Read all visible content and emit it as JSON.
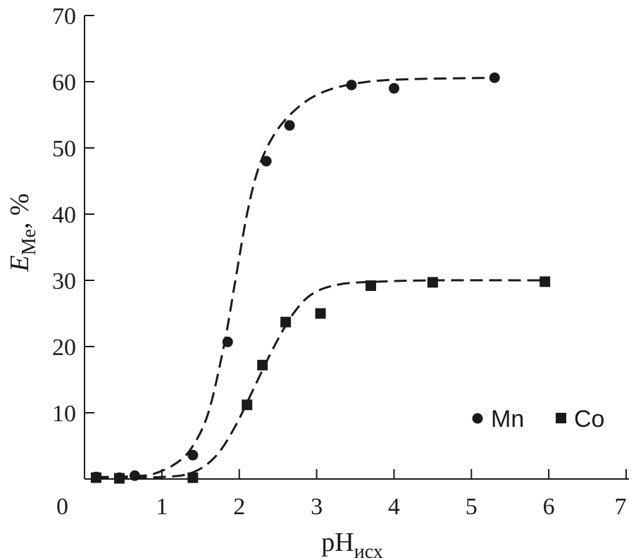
{
  "chart_data": {
    "type": "scatter",
    "title": "",
    "xlabel": {
      "main": "pH",
      "sub": "исх"
    },
    "ylabel": {
      "main": "E",
      "sub": "Me",
      "suffix": ", %"
    },
    "xlim": [
      0,
      7
    ],
    "ylim": [
      0,
      70
    ],
    "x_ticks": [
      "0",
      "1",
      "2",
      "3",
      "4",
      "5",
      "6",
      "7"
    ],
    "y_ticks": [
      "10",
      "20",
      "30",
      "40",
      "50",
      "60",
      "70"
    ],
    "grid": false,
    "legend_position": "bottom-right",
    "series": [
      {
        "name": "Mn",
        "marker": "circle",
        "color": "#1a1a1a",
        "points": [
          [
            0.15,
            0.3
          ],
          [
            0.45,
            0.2
          ],
          [
            0.65,
            0.5
          ],
          [
            1.4,
            3.6
          ],
          [
            1.85,
            20.7
          ],
          [
            2.35,
            48.0
          ],
          [
            2.65,
            53.4
          ],
          [
            3.45,
            59.5
          ],
          [
            4.0,
            59.0
          ],
          [
            5.3,
            60.6
          ]
        ],
        "fit_curve": [
          [
            0.15,
            0.3
          ],
          [
            0.6,
            0.4
          ],
          [
            0.9,
            0.8
          ],
          [
            1.2,
            2.5
          ],
          [
            1.4,
            5.0
          ],
          [
            1.6,
            10.0
          ],
          [
            1.8,
            20.0
          ],
          [
            1.95,
            30.0
          ],
          [
            2.1,
            40.0
          ],
          [
            2.25,
            47.0
          ],
          [
            2.45,
            52.0
          ],
          [
            2.7,
            55.5
          ],
          [
            3.0,
            58.0
          ],
          [
            3.4,
            59.5
          ],
          [
            4.0,
            60.3
          ],
          [
            5.3,
            60.6
          ]
        ]
      },
      {
        "name": "Co",
        "marker": "square",
        "color": "#1a1a1a",
        "points": [
          [
            0.15,
            0.2
          ],
          [
            0.45,
            0.1
          ],
          [
            1.4,
            0.2
          ],
          [
            2.1,
            11.2
          ],
          [
            2.3,
            17.2
          ],
          [
            2.6,
            23.7
          ],
          [
            3.05,
            25.0
          ],
          [
            3.7,
            29.2
          ],
          [
            4.5,
            29.7
          ],
          [
            5.95,
            29.8
          ]
        ],
        "fit_curve": [
          [
            0.15,
            0.2
          ],
          [
            1.0,
            0.3
          ],
          [
            1.4,
            1.0
          ],
          [
            1.7,
            3.5
          ],
          [
            1.95,
            8.0
          ],
          [
            2.2,
            14.0
          ],
          [
            2.45,
            20.0
          ],
          [
            2.7,
            25.0
          ],
          [
            2.95,
            28.0
          ],
          [
            3.3,
            29.4
          ],
          [
            3.8,
            29.8
          ],
          [
            4.5,
            30.0
          ],
          [
            5.95,
            30.0
          ]
        ]
      }
    ]
  }
}
